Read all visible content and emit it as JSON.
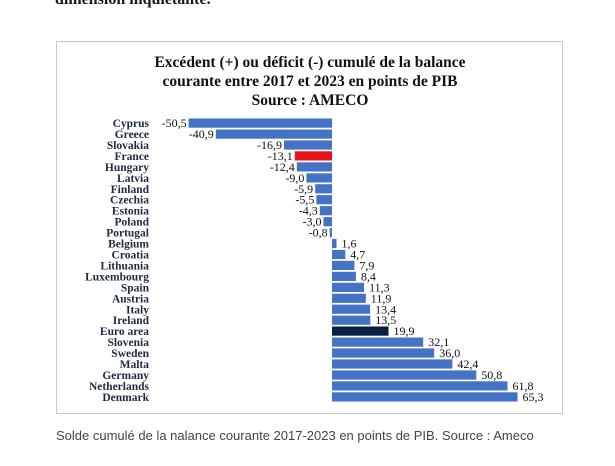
{
  "page": {
    "top_text": "dimension inquiétante.",
    "caption": "Solde cumulé de la nalance courante 2017-2023 en points de PIB. Source : Ameco"
  },
  "chart_data": {
    "type": "bar",
    "orientation": "horizontal",
    "title_lines": [
      "Excédent (+) ou déficit (-) cumulé de la balance",
      "courante entre 2017 et 2023 en points de PIB",
      "Source : AMECO"
    ],
    "categories": [
      "Cyprus",
      "Greece",
      "Slovakia",
      "France",
      "Hungary",
      "Latvia",
      "Finland",
      "Czechia",
      "Estonia",
      "Poland",
      "Portugal",
      "Belgium",
      "Croatia",
      "Lithuania",
      "Luxembourg",
      "Spain",
      "Austria",
      "Italy",
      "Ireland",
      "Euro area",
      "Slovenia",
      "Sweden",
      "Malta",
      "Germany",
      "Netherlands",
      "Denmark"
    ],
    "values": [
      -50.5,
      -40.9,
      -16.9,
      -13.1,
      -12.4,
      -9.0,
      -5.9,
      -5.5,
      -4.3,
      -3.0,
      -0.8,
      1.6,
      4.7,
      7.9,
      8.4,
      11.3,
      11.9,
      13.4,
      13.5,
      19.9,
      32.1,
      36.0,
      42.4,
      50.8,
      61.8,
      65.3
    ],
    "value_labels": [
      "-50,5",
      "-40,9",
      "-16,9",
      "-13,1",
      "-12,4",
      "-9,0",
      "-5,9",
      "-5,5",
      "-4,3",
      "-3,0",
      "-0,8",
      "1,6",
      "4,7",
      "7,9",
      "8,4",
      "11,3",
      "11,9",
      "13,4",
      "13,5",
      "19,9",
      "32,1",
      "36,0",
      "42,4",
      "50,8",
      "61,8",
      "65,3"
    ],
    "bar_colors": {
      "default": "#4472c4",
      "France": "#e8141c",
      "Euro area": "#0b1f45"
    },
    "xlim": [
      -51,
      66
    ],
    "grid": false,
    "legend": "none"
  }
}
